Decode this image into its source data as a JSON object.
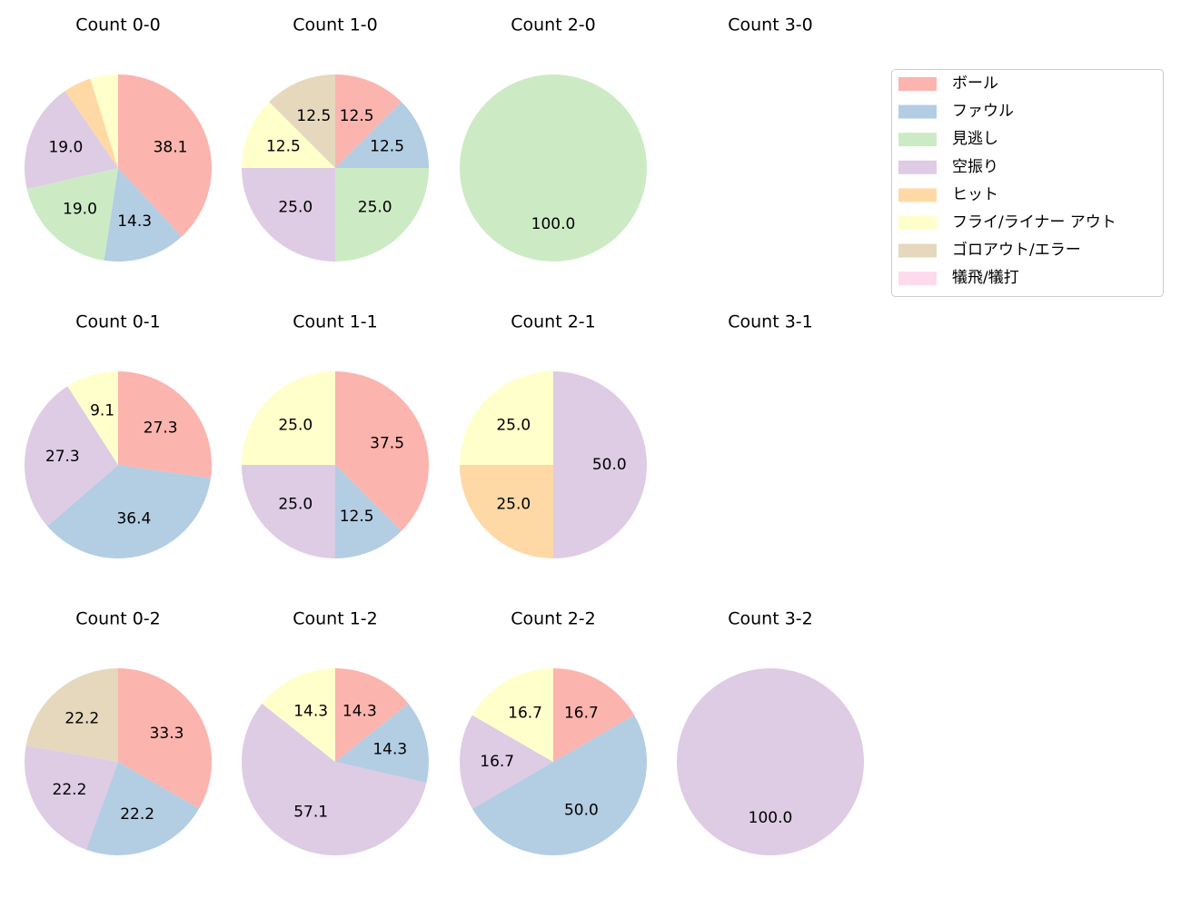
{
  "legend": {
    "categories": [
      "ボール",
      "ファウル",
      "見逃し",
      "空振り",
      "ヒット",
      "フライ/ライナー アウト",
      "ゴロアウト/エラー",
      "犠飛/犠打"
    ],
    "colors": [
      "#fbb4ae",
      "#b3cde3",
      "#ccebc5",
      "#decbe4",
      "#fed9a6",
      "#ffffcc",
      "#e5d8bd",
      "#fddaec"
    ]
  },
  "chart_data": [
    {
      "type": "pie",
      "title": "Count 0-0",
      "values": [
        38.1,
        14.3,
        19.0,
        19.0,
        4.8,
        4.8,
        0,
        0
      ],
      "value_labels": [
        "38.1",
        "14.3",
        "19.0",
        "19.0",
        null,
        null,
        null,
        null
      ]
    },
    {
      "type": "pie",
      "title": "Count 1-0",
      "values": [
        12.5,
        12.5,
        25.0,
        25.0,
        0,
        12.5,
        12.5,
        0
      ],
      "value_labels": [
        "12.5",
        "12.5",
        "25.0",
        "25.0",
        null,
        "12.5",
        "12.5",
        null
      ]
    },
    {
      "type": "pie",
      "title": "Count 2-0",
      "values": [
        0,
        0,
        100,
        0,
        0,
        0,
        0,
        0
      ],
      "value_labels": [
        null,
        null,
        "100.0",
        null,
        null,
        null,
        null,
        null
      ]
    },
    {
      "type": "pie",
      "title": "Count 3-0"
    },
    {
      "type": "pie",
      "title": "Count 0-1",
      "values": [
        27.3,
        36.4,
        0,
        27.3,
        0,
        9.1,
        0,
        0
      ],
      "value_labels": [
        "27.3",
        "36.4",
        null,
        "27.3",
        null,
        "9.1",
        null,
        null
      ]
    },
    {
      "type": "pie",
      "title": "Count 1-1",
      "values": [
        37.5,
        12.5,
        0,
        25.0,
        0,
        25.0,
        0,
        0
      ],
      "value_labels": [
        "37.5",
        "12.5",
        null,
        "25.0",
        null,
        "25.0",
        null,
        null
      ]
    },
    {
      "type": "pie",
      "title": "Count 2-1",
      "values": [
        0,
        0,
        0,
        50.0,
        25.0,
        25.0,
        0,
        0
      ],
      "value_labels": [
        null,
        null,
        null,
        "50.0",
        "25.0",
        "25.0",
        null,
        null
      ]
    },
    {
      "type": "pie",
      "title": "Count 3-1"
    },
    {
      "type": "pie",
      "title": "Count 0-2",
      "values": [
        33.3,
        22.2,
        0,
        22.2,
        0,
        0,
        22.2,
        0
      ],
      "value_labels": [
        "33.3",
        "22.2",
        null,
        "22.2",
        null,
        null,
        "22.2",
        null
      ]
    },
    {
      "type": "pie",
      "title": "Count 1-2",
      "values": [
        14.3,
        14.3,
        0,
        57.1,
        0,
        14.3,
        0,
        0
      ],
      "value_labels": [
        "14.3",
        "14.3",
        null,
        "57.1",
        null,
        "14.3",
        null,
        null
      ]
    },
    {
      "type": "pie",
      "title": "Count 2-2",
      "values": [
        16.7,
        50.0,
        0,
        16.7,
        0,
        16.7,
        0,
        0
      ],
      "value_labels": [
        "16.7",
        "50.0",
        null,
        "16.7",
        null,
        "16.7",
        null,
        null
      ]
    },
    {
      "type": "pie",
      "title": "Count 3-2",
      "values": [
        0,
        0,
        0,
        100,
        0,
        0,
        0,
        0
      ],
      "value_labels": [
        null,
        null,
        null,
        "100.0",
        null,
        null,
        null,
        null
      ]
    }
  ]
}
